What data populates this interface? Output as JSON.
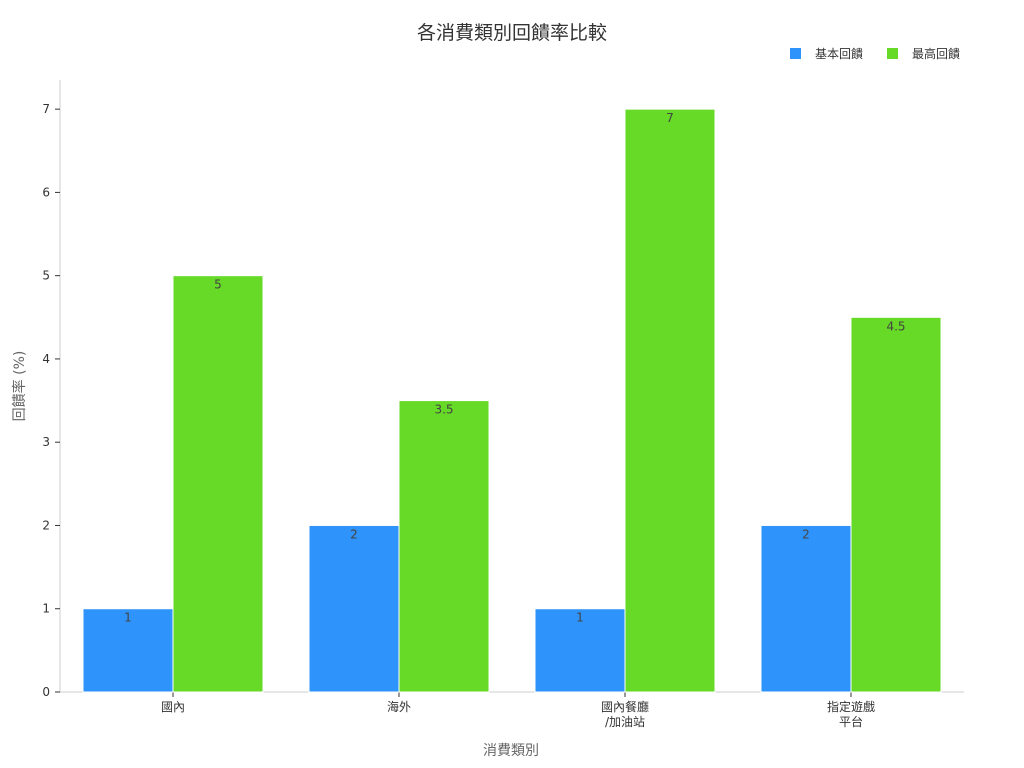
{
  "chart_data": {
    "type": "bar",
    "title": "各消費類別回饋率比較",
    "xlabel": "消費類別",
    "ylabel": "回饋率 (%)",
    "categories": [
      [
        "國內"
      ],
      [
        "海外"
      ],
      [
        "國內餐廳",
        "/加油站"
      ],
      [
        "指定遊戲",
        "平台"
      ]
    ],
    "series": [
      {
        "name": "基本回饋",
        "color": "#2e93fa",
        "values": [
          1,
          2,
          1,
          2
        ],
        "labels": [
          "1",
          "2",
          "1",
          "2"
        ]
      },
      {
        "name": "最高回饋",
        "color": "#66da26",
        "values": [
          5,
          3.5,
          7,
          4.5
        ],
        "labels": [
          "5",
          "3.5",
          "7",
          "4.5"
        ]
      }
    ],
    "ylim": [
      0,
      7.35
    ],
    "yticks": [
      0,
      1,
      2,
      3,
      4,
      5,
      6,
      7
    ],
    "legend_position": "top-right",
    "grid": false
  }
}
